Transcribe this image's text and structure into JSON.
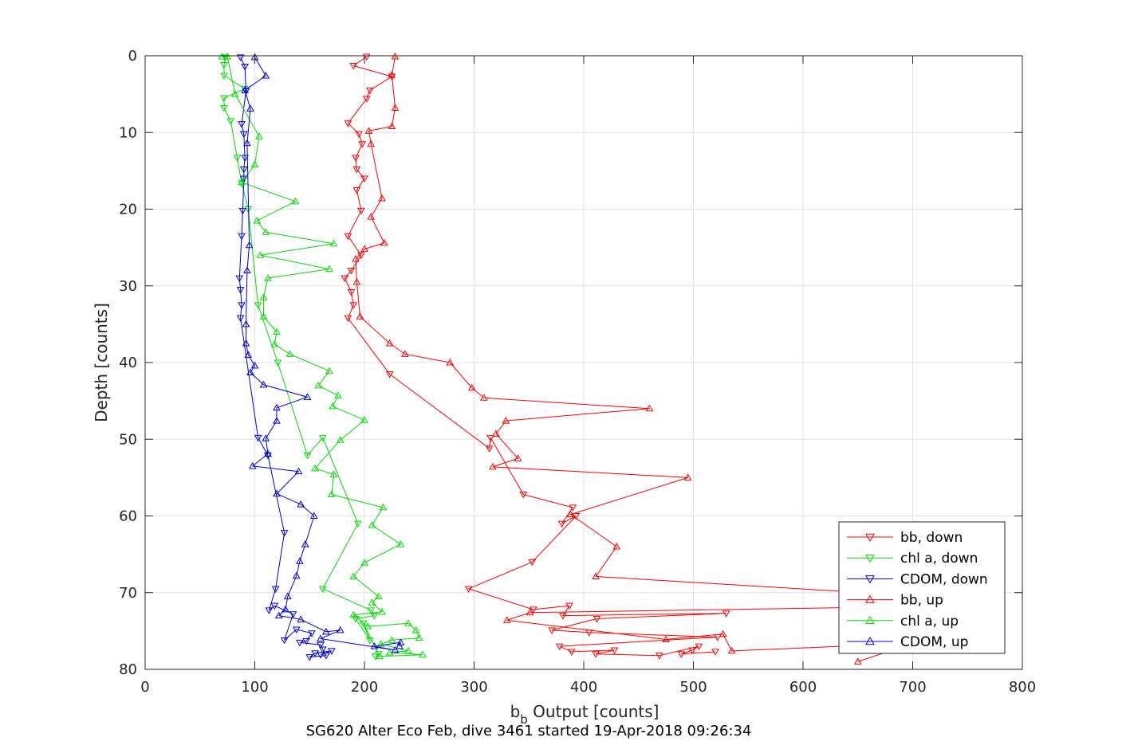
{
  "chart_data": {
    "type": "line",
    "title": "SG620 Alter Eco Feb, dive 3461 started 19-Apr-2018 09:26:34",
    "xlabel_main": "b",
    "xlabel_sub": "b",
    "xlabel_rest": " Output [counts]",
    "ylabel": "Depth [counts]",
    "xlim": [
      0,
      800
    ],
    "ylim": [
      0,
      80
    ],
    "y_reversed": true,
    "grid": true,
    "legend_placement": "bottom-right",
    "xticks": [
      0,
      100,
      200,
      300,
      400,
      500,
      600,
      700,
      800
    ],
    "yticks": [
      0,
      10,
      20,
      30,
      40,
      50,
      60,
      70,
      80
    ],
    "series": [
      {
        "name": "bb, down",
        "color": "#ff0000",
        "marker": "triangle-down",
        "points": [
          [
            202,
            0.1
          ],
          [
            190,
            1.3
          ],
          [
            225,
            2.7
          ],
          [
            205,
            4.5
          ],
          [
            202,
            5.6
          ],
          [
            185,
            8.8
          ],
          [
            195,
            10.2
          ],
          [
            198,
            11.5
          ],
          [
            192,
            13.3
          ],
          [
            193,
            14.8
          ],
          [
            200,
            16.0
          ],
          [
            193,
            17.5
          ],
          [
            197,
            20.2
          ],
          [
            185,
            23.5
          ],
          [
            197,
            26.0
          ],
          [
            188,
            28.0
          ],
          [
            182,
            29.0
          ],
          [
            188,
            30.8
          ],
          [
            190,
            32.5
          ],
          [
            185,
            34.2
          ],
          [
            223,
            41.5
          ],
          [
            314,
            51.2
          ],
          [
            315,
            49.8
          ],
          [
            345,
            57.2
          ],
          [
            390,
            58.9
          ],
          [
            380,
            61.0
          ],
          [
            393,
            60.0
          ],
          [
            353,
            66.0
          ],
          [
            295,
            69.5
          ],
          [
            354,
            72.2
          ],
          [
            387,
            71.7
          ],
          [
            381,
            73.0
          ],
          [
            530,
            72.7
          ],
          [
            412,
            73.4
          ],
          [
            371,
            74.9
          ],
          [
            405,
            75.2
          ],
          [
            522,
            75.8
          ],
          [
            378,
            77.0
          ],
          [
            389,
            77.7
          ],
          [
            428,
            77.5
          ],
          [
            411,
            78.0
          ],
          [
            469,
            78.2
          ],
          [
            505,
            77.0
          ],
          [
            499,
            77.5
          ],
          [
            489,
            78.0
          ],
          [
            520,
            77.7
          ]
        ]
      },
      {
        "name": "chl a, down",
        "color": "#00dd00",
        "marker": "triangle-down",
        "points": [
          [
            73,
            0.2
          ],
          [
            72,
            1.2
          ],
          [
            72,
            2.6
          ],
          [
            91,
            4.3
          ],
          [
            72,
            5.5
          ],
          [
            72,
            6.8
          ],
          [
            78,
            8.5
          ],
          [
            84,
            13.3
          ],
          [
            88,
            16.6
          ],
          [
            94,
            20.0
          ],
          [
            103,
            32.5
          ],
          [
            121,
            40.0
          ],
          [
            148,
            52.1
          ],
          [
            162,
            49.8
          ],
          [
            194,
            61.0
          ],
          [
            162,
            69.5
          ],
          [
            206,
            72.3
          ],
          [
            209,
            73.0
          ],
          [
            192,
            73.4
          ],
          [
            205,
            76.2
          ],
          [
            199,
            74.0
          ],
          [
            213,
            78.0
          ],
          [
            210,
            78.3
          ]
        ]
      },
      {
        "name": "CDOM, down",
        "color": "#0000dd",
        "marker": "triangle-down",
        "points": [
          [
            87,
            0.2
          ],
          [
            91,
            1.4
          ],
          [
            92,
            4.6
          ],
          [
            88,
            8.9
          ],
          [
            90,
            10.2
          ],
          [
            91,
            13.3
          ],
          [
            90,
            14.8
          ],
          [
            90,
            16.0
          ],
          [
            89,
            20.2
          ],
          [
            88,
            23.5
          ],
          [
            86,
            29.0
          ],
          [
            87,
            30.5
          ],
          [
            88,
            32.5
          ],
          [
            87,
            34.2
          ],
          [
            103,
            49.8
          ],
          [
            112,
            52.1
          ],
          [
            127,
            62.2
          ],
          [
            119,
            69.5
          ],
          [
            113,
            72.3
          ],
          [
            118,
            71.7
          ],
          [
            135,
            72.8
          ],
          [
            127,
            76.2
          ],
          [
            138,
            74.8
          ],
          [
            152,
            75.3
          ],
          [
            147,
            76.3
          ],
          [
            141,
            76.5
          ],
          [
            160,
            76.8
          ],
          [
            162,
            77.4
          ],
          [
            165,
            78.2
          ],
          [
            150,
            78.4
          ],
          [
            155,
            77.9
          ],
          [
            170,
            77.6
          ],
          [
            160,
            78.1
          ]
        ]
      },
      {
        "name": "bb, up",
        "color": "#ff0000",
        "marker": "triangle-up",
        "points": [
          [
            228,
            0.1
          ],
          [
            225,
            2.5
          ],
          [
            228,
            6.8
          ],
          [
            225,
            9.2
          ],
          [
            204,
            9.8
          ],
          [
            206,
            11.5
          ],
          [
            216,
            18.6
          ],
          [
            206,
            21.0
          ],
          [
            218,
            24.4
          ],
          [
            200,
            25.2
          ],
          [
            192,
            26.5
          ],
          [
            193,
            29.5
          ],
          [
            196,
            34.0
          ],
          [
            223,
            37.5
          ],
          [
            237,
            38.9
          ],
          [
            278,
            40.0
          ],
          [
            298,
            43.3
          ],
          [
            309,
            44.6
          ],
          [
            460,
            46.0
          ],
          [
            329,
            47.6
          ],
          [
            320,
            49.3
          ],
          [
            340,
            52.5
          ],
          [
            317,
            53.6
          ],
          [
            495,
            55.0
          ],
          [
            388,
            59.8
          ],
          [
            430,
            64.0
          ],
          [
            411,
            67.9
          ],
          [
            714,
            70.5
          ],
          [
            705,
            71.8
          ],
          [
            351,
            72.6
          ],
          [
            330,
            73.6
          ],
          [
            475,
            76.1
          ],
          [
            527,
            75.4
          ],
          [
            535,
            77.6
          ],
          [
            700,
            76.6
          ],
          [
            650,
            79.0
          ]
        ]
      },
      {
        "name": "chl a, up",
        "color": "#00dd00",
        "marker": "triangle-up",
        "points": [
          [
            70,
            0.1
          ],
          [
            75,
            0.1
          ],
          [
            82,
            5.0
          ],
          [
            104,
            10.5
          ],
          [
            100,
            14.2
          ],
          [
            88,
            16.5
          ],
          [
            137,
            19.0
          ],
          [
            102,
            21.5
          ],
          [
            110,
            23.0
          ],
          [
            172,
            24.5
          ],
          [
            105,
            26.0
          ],
          [
            168,
            27.8
          ],
          [
            112,
            29.0
          ],
          [
            108,
            31.5
          ],
          [
            108,
            34.0
          ],
          [
            120,
            36.0
          ],
          [
            118,
            37.6
          ],
          [
            132,
            38.9
          ],
          [
            168,
            41.1
          ],
          [
            158,
            43.0
          ],
          [
            176,
            44.3
          ],
          [
            171,
            45.7
          ],
          [
            200,
            47.5
          ],
          [
            178,
            50.1
          ],
          [
            155,
            53.8
          ],
          [
            172,
            54.6
          ],
          [
            170,
            57.2
          ],
          [
            217,
            58.9
          ],
          [
            207,
            61.2
          ],
          [
            233,
            63.7
          ],
          [
            200,
            66.1
          ],
          [
            190,
            67.9
          ],
          [
            213,
            70.5
          ],
          [
            207,
            71.3
          ],
          [
            216,
            72.5
          ],
          [
            190,
            72.9
          ],
          [
            203,
            74.4
          ],
          [
            240,
            74.0
          ],
          [
            247,
            74.9
          ],
          [
            250,
            75.9
          ],
          [
            225,
            76.2
          ],
          [
            215,
            76.7
          ],
          [
            240,
            77.6
          ],
          [
            223,
            77.8
          ],
          [
            253,
            78.1
          ],
          [
            214,
            78.3
          ]
        ]
      },
      {
        "name": "CDOM, up",
        "color": "#0000dd",
        "marker": "triangle-up",
        "points": [
          [
            100,
            0.2
          ],
          [
            110,
            2.6
          ],
          [
            91,
            4.5
          ],
          [
            96,
            6.9
          ],
          [
            93,
            11.4
          ],
          [
            95,
            24.7
          ],
          [
            93,
            28.0
          ],
          [
            92,
            35.0
          ],
          [
            92,
            37.5
          ],
          [
            94,
            39.0
          ],
          [
            100,
            40.4
          ],
          [
            96,
            41.3
          ],
          [
            108,
            42.9
          ],
          [
            148,
            44.5
          ],
          [
            120,
            45.9
          ],
          [
            120,
            47.6
          ],
          [
            110,
            49.9
          ],
          [
            112,
            51.9
          ],
          [
            98,
            53.5
          ],
          [
            140,
            54.2
          ],
          [
            120,
            57.1
          ],
          [
            142,
            58.5
          ],
          [
            154,
            60.0
          ],
          [
            146,
            63.7
          ],
          [
            141,
            65.9
          ],
          [
            138,
            67.8
          ],
          [
            130,
            70.5
          ],
          [
            128,
            72.2
          ],
          [
            122,
            73.0
          ],
          [
            142,
            73.5
          ],
          [
            165,
            75.1
          ],
          [
            178,
            74.9
          ],
          [
            160,
            76.0
          ],
          [
            228,
            77.5
          ],
          [
            209,
            77.0
          ],
          [
            233,
            76.5
          ],
          [
            232,
            77.0
          ]
        ]
      }
    ]
  }
}
